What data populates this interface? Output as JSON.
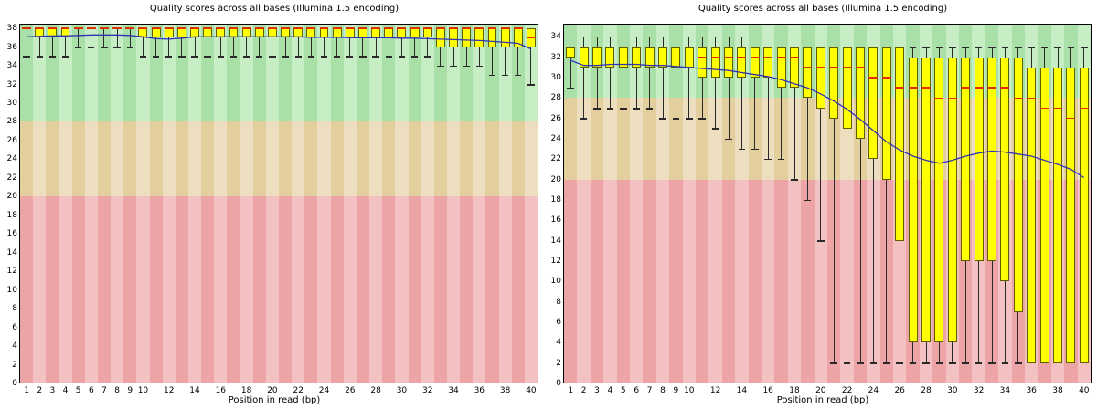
{
  "page_background": "#ffffff",
  "chart_data": [
    {
      "type": "boxplot",
      "title": "Quality scores across all bases (Illumina 1.5 encoding)",
      "xlabel": "Position in read (bp)",
      "x": [
        1,
        2,
        3,
        4,
        5,
        6,
        7,
        8,
        9,
        10,
        11,
        12,
        13,
        14,
        15,
        16,
        17,
        18,
        19,
        20,
        21,
        22,
        23,
        24,
        25,
        26,
        27,
        28,
        29,
        30,
        31,
        32,
        33,
        34,
        35,
        36,
        37,
        38,
        39,
        40
      ],
      "x_ticks": [
        1,
        2,
        3,
        4,
        5,
        6,
        7,
        8,
        9,
        10,
        12,
        14,
        16,
        18,
        20,
        22,
        24,
        26,
        28,
        30,
        32,
        34,
        36,
        38,
        40
      ],
      "ylim": [
        0,
        38.4
      ],
      "y_tick_min": 0,
      "y_tick_max": 38,
      "y_tick_step": 2,
      "grid": false,
      "legend": "none",
      "bands": [
        {
          "name": "good-quality-band",
          "from": 28,
          "to": 38.4,
          "colors": [
            "#a8e0a8",
            "#c7edc4"
          ]
        },
        {
          "name": "medium-quality-band",
          "from": 20,
          "to": 28,
          "colors": [
            "#e3cf9e",
            "#eddec0"
          ]
        },
        {
          "name": "poor-quality-band",
          "from": 0,
          "to": 20,
          "colors": [
            "#eca4a6",
            "#f3c1c1"
          ]
        }
      ],
      "boxes": [
        [
          35,
          38,
          38,
          38,
          38
        ],
        [
          35,
          37,
          38,
          38,
          38
        ],
        [
          35,
          37,
          38,
          38,
          38
        ],
        [
          35,
          37,
          38,
          38,
          38
        ],
        [
          36,
          38,
          38,
          38,
          38
        ],
        [
          36,
          38,
          38,
          38,
          38
        ],
        [
          36,
          38,
          38,
          38,
          38
        ],
        [
          36,
          38,
          38,
          38,
          38
        ],
        [
          36,
          38,
          38,
          38,
          38
        ],
        [
          35,
          37,
          38,
          38,
          38
        ],
        [
          35,
          37,
          38,
          38,
          38
        ],
        [
          35,
          37,
          38,
          38,
          38
        ],
        [
          35,
          37,
          38,
          38,
          38
        ],
        [
          35,
          37,
          38,
          38,
          38
        ],
        [
          35,
          37,
          38,
          38,
          38
        ],
        [
          35,
          37,
          38,
          38,
          38
        ],
        [
          35,
          37,
          38,
          38,
          38
        ],
        [
          35,
          37,
          38,
          38,
          38
        ],
        [
          35,
          37,
          38,
          38,
          38
        ],
        [
          35,
          37,
          38,
          38,
          38
        ],
        [
          35,
          37,
          38,
          38,
          38
        ],
        [
          35,
          37,
          38,
          38,
          38
        ],
        [
          35,
          37,
          38,
          38,
          38
        ],
        [
          35,
          37,
          38,
          38,
          38
        ],
        [
          35,
          37,
          38,
          38,
          38
        ],
        [
          35,
          37,
          38,
          38,
          38
        ],
        [
          35,
          37,
          38,
          38,
          38
        ],
        [
          35,
          37,
          38,
          38,
          38
        ],
        [
          35,
          37,
          38,
          38,
          38
        ],
        [
          35,
          37,
          38,
          38,
          38
        ],
        [
          35,
          37,
          38,
          38,
          38
        ],
        [
          35,
          37,
          38,
          38,
          38
        ],
        [
          34,
          36,
          38,
          38,
          38
        ],
        [
          34,
          36,
          38,
          38,
          38
        ],
        [
          34,
          36,
          38,
          38,
          38
        ],
        [
          34,
          36,
          38,
          38,
          38
        ],
        [
          33,
          36,
          38,
          38,
          38
        ],
        [
          33,
          36,
          38,
          38,
          38
        ],
        [
          33,
          36,
          38,
          38,
          38
        ],
        [
          32,
          36,
          37,
          38,
          38
        ]
      ],
      "mean": [
        37.1,
        37.15,
        37.2,
        37.2,
        37.25,
        37.3,
        37.3,
        37.3,
        37.25,
        37.1,
        36.9,
        36.85,
        36.95,
        37.1,
        37.1,
        37.1,
        37.1,
        37.1,
        37.1,
        37.1,
        37.1,
        37.1,
        37.05,
        37.05,
        37.05,
        37.0,
        37.0,
        37.0,
        37.0,
        36.95,
        36.95,
        36.9,
        36.85,
        36.8,
        36.75,
        36.7,
        36.6,
        36.5,
        36.4,
        35.8
      ],
      "colors": {
        "box_fill": "#ffff00",
        "box_border": "#5f5f00",
        "whisker": "#2a2a2a",
        "median": "#dd3000",
        "mean_line": "#3232b4",
        "axis": "#000000"
      }
    },
    {
      "type": "boxplot",
      "title": "Quality scores across all bases (Illumina 1.5 encoding)",
      "xlabel": "Position in read (bp)",
      "x": [
        1,
        2,
        3,
        4,
        5,
        6,
        7,
        8,
        9,
        10,
        11,
        12,
        13,
        14,
        15,
        16,
        17,
        18,
        19,
        20,
        21,
        22,
        23,
        24,
        25,
        26,
        27,
        28,
        29,
        30,
        31,
        32,
        33,
        34,
        35,
        36,
        37,
        38,
        39,
        40
      ],
      "x_ticks": [
        1,
        2,
        3,
        4,
        5,
        6,
        7,
        8,
        9,
        10,
        12,
        14,
        16,
        18,
        20,
        22,
        24,
        26,
        28,
        30,
        32,
        34,
        36,
        38,
        40
      ],
      "ylim": [
        0,
        35.2
      ],
      "y_tick_min": 0,
      "y_tick_max": 34,
      "y_tick_step": 2,
      "grid": false,
      "legend": "none",
      "bands": [
        {
          "name": "good-quality-band",
          "from": 28,
          "to": 35.2,
          "colors": [
            "#a8e0a8",
            "#c7edc4"
          ]
        },
        {
          "name": "medium-quality-band",
          "from": 20,
          "to": 28,
          "colors": [
            "#e3cf9e",
            "#eddec0"
          ]
        },
        {
          "name": "poor-quality-band",
          "from": 0,
          "to": 20,
          "colors": [
            "#eca4a6",
            "#f3c1c1"
          ]
        }
      ],
      "boxes": [
        [
          29,
          32,
          33,
          33,
          33
        ],
        [
          26,
          31,
          33,
          33,
          34
        ],
        [
          27,
          31,
          33,
          33,
          34
        ],
        [
          27,
          31,
          33,
          33,
          34
        ],
        [
          27,
          31,
          33,
          33,
          34
        ],
        [
          27,
          31,
          33,
          33,
          34
        ],
        [
          27,
          31,
          33,
          33,
          34
        ],
        [
          26,
          31,
          33,
          33,
          34
        ],
        [
          26,
          31,
          33,
          33,
          34
        ],
        [
          26,
          31,
          33,
          33,
          34
        ],
        [
          26,
          30,
          32,
          33,
          34
        ],
        [
          25,
          30,
          32,
          33,
          34
        ],
        [
          24,
          30,
          32,
          33,
          34
        ],
        [
          23,
          30,
          32,
          33,
          34
        ],
        [
          23,
          30,
          32,
          33,
          33
        ],
        [
          22,
          30,
          32,
          33,
          33
        ],
        [
          22,
          29,
          32,
          33,
          33
        ],
        [
          20,
          29,
          32,
          33,
          33
        ],
        [
          18,
          28,
          31,
          33,
          33
        ],
        [
          14,
          27,
          31,
          33,
          33
        ],
        [
          2,
          26,
          31,
          33,
          33
        ],
        [
          2,
          25,
          31,
          33,
          33
        ],
        [
          2,
          24,
          31,
          33,
          33
        ],
        [
          2,
          22,
          30,
          33,
          33
        ],
        [
          2,
          20,
          30,
          33,
          33
        ],
        [
          2,
          14,
          29,
          33,
          33
        ],
        [
          2,
          4,
          29,
          32,
          33
        ],
        [
          2,
          4,
          29,
          32,
          33
        ],
        [
          2,
          4,
          28,
          32,
          33
        ],
        [
          2,
          4,
          28,
          32,
          33
        ],
        [
          2,
          12,
          29,
          32,
          33
        ],
        [
          2,
          12,
          29,
          32,
          33
        ],
        [
          2,
          12,
          29,
          32,
          33
        ],
        [
          2,
          10,
          29,
          32,
          33
        ],
        [
          2,
          7,
          28,
          32,
          33
        ],
        [
          2,
          2,
          28,
          31,
          33
        ],
        [
          2,
          2,
          27,
          31,
          33
        ],
        [
          2,
          2,
          27,
          31,
          33
        ],
        [
          2,
          2,
          26,
          31,
          33
        ],
        [
          2,
          2,
          27,
          31,
          33
        ]
      ],
      "mean": [
        31.7,
        31.2,
        31.2,
        31.3,
        31.3,
        31.3,
        31.2,
        31.2,
        31.1,
        31.0,
        30.9,
        30.8,
        30.7,
        30.5,
        30.3,
        30.1,
        29.8,
        29.4,
        29.0,
        28.4,
        27.7,
        26.9,
        25.9,
        24.8,
        23.7,
        22.9,
        22.3,
        21.9,
        21.6,
        21.9,
        22.3,
        22.6,
        22.8,
        22.7,
        22.5,
        22.3,
        21.9,
        21.5,
        21.0,
        20.2
      ],
      "colors": {
        "box_fill": "#ffff00",
        "box_border": "#5f5f00",
        "whisker": "#2a2a2a",
        "median": "#dd3000",
        "mean_line": "#3232b4",
        "axis": "#000000"
      }
    }
  ]
}
